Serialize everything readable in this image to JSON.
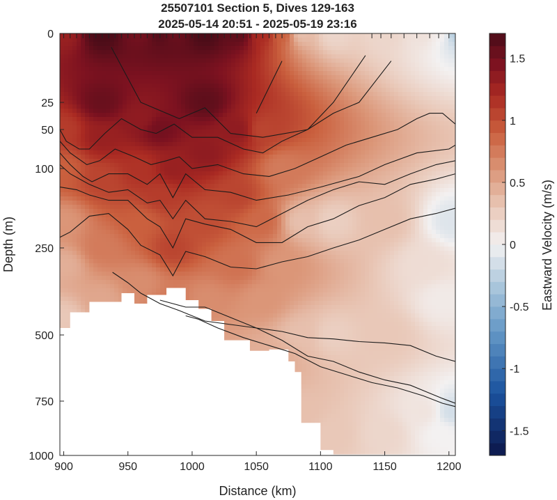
{
  "chart_data": {
    "type": "heatmap",
    "title": "25507101 Section 5, Dives 129-163",
    "subtitle": "2025-05-14 20:51 - 2025-05-19 23:16",
    "xlabel": "Distance (km)",
    "ylabel": "Depth (m)",
    "colorbar_label": "Eastward Velocity (m/s)",
    "x_ticks": [
      "900",
      "950",
      "1000",
      "1050",
      "1100",
      "1150",
      "1200"
    ],
    "x_tick_values": [
      900,
      950,
      1000,
      1050,
      1100,
      1150,
      1200
    ],
    "y_ticks": [
      "0",
      "25",
      "50",
      "100",
      "250",
      "500",
      "750",
      "1000"
    ],
    "y_tick_values": [
      0,
      25,
      50,
      100,
      250,
      500,
      750,
      1000
    ],
    "colorbar_ticks": [
      "1.5",
      "1",
      "0.5",
      "0",
      "-0.5",
      "-1",
      "-1.5"
    ],
    "colorbar_tick_values": [
      1.5,
      1,
      0.5,
      0,
      -0.5,
      -1,
      -1.5
    ],
    "xlim": [
      897,
      1205
    ],
    "ylim": [
      0,
      1000
    ],
    "clim": [
      -1.7,
      1.7
    ],
    "colors": {
      "positive": "#4a0c18",
      "neutral": "#f3f1f1",
      "negative": "#0c1a4a"
    },
    "dive_markers_x": [
      900,
      905,
      910,
      915,
      920,
      925,
      930,
      935,
      940,
      945,
      950,
      955,
      960,
      965,
      970,
      975,
      980,
      985,
      990,
      995,
      1000,
      1005,
      1010,
      1015,
      1020,
      1025,
      1030,
      1035,
      1040,
      1045,
      1050,
      1055,
      1060,
      1065,
      1070,
      1140,
      1147,
      1155,
      1165,
      1175,
      1185,
      1192,
      1200
    ],
    "velocity_field": [
      {
        "x": 900,
        "d": 0,
        "v": 1.3
      },
      {
        "x": 900,
        "d": 50,
        "v": 1.1
      },
      {
        "x": 900,
        "d": 100,
        "v": 0.9
      },
      {
        "x": 900,
        "d": 200,
        "v": 0.6
      },
      {
        "x": 900,
        "d": 300,
        "v": 0.45
      },
      {
        "x": 900,
        "d": 450,
        "v": 0.3
      },
      {
        "x": 930,
        "d": 0,
        "v": 1.7
      },
      {
        "x": 930,
        "d": 25,
        "v": 1.55
      },
      {
        "x": 930,
        "d": 60,
        "v": 1.3
      },
      {
        "x": 930,
        "d": 120,
        "v": 1.05
      },
      {
        "x": 930,
        "d": 250,
        "v": 0.75
      },
      {
        "x": 930,
        "d": 400,
        "v": 0.5
      },
      {
        "x": 960,
        "d": 0,
        "v": 1.5
      },
      {
        "x": 960,
        "d": 40,
        "v": 1.35
      },
      {
        "x": 960,
        "d": 100,
        "v": 1.15
      },
      {
        "x": 960,
        "d": 200,
        "v": 0.9
      },
      {
        "x": 960,
        "d": 350,
        "v": 0.65
      },
      {
        "x": 975,
        "d": 0,
        "v": 1.65
      },
      {
        "x": 975,
        "d": 50,
        "v": 1.5
      },
      {
        "x": 975,
        "d": 150,
        "v": 1.1
      },
      {
        "x": 985,
        "d": 0,
        "v": 1.55
      },
      {
        "x": 985,
        "d": 100,
        "v": 1.3
      },
      {
        "x": 985,
        "d": 250,
        "v": 1.05
      },
      {
        "x": 985,
        "d": 400,
        "v": 0.75
      },
      {
        "x": 1010,
        "d": 0,
        "v": 1.7
      },
      {
        "x": 1010,
        "d": 25,
        "v": 1.6
      },
      {
        "x": 1010,
        "d": 80,
        "v": 1.35
      },
      {
        "x": 1010,
        "d": 200,
        "v": 1.0
      },
      {
        "x": 1010,
        "d": 400,
        "v": 0.65
      },
      {
        "x": 1010,
        "d": 550,
        "v": 0.5
      },
      {
        "x": 1035,
        "d": 0,
        "v": 1.6
      },
      {
        "x": 1035,
        "d": 50,
        "v": 1.35
      },
      {
        "x": 1035,
        "d": 150,
        "v": 1.05
      },
      {
        "x": 1035,
        "d": 300,
        "v": 0.8
      },
      {
        "x": 1055,
        "d": 0,
        "v": 1.2
      },
      {
        "x": 1055,
        "d": 50,
        "v": 1.05
      },
      {
        "x": 1055,
        "d": 200,
        "v": 0.85
      },
      {
        "x": 1055,
        "d": 400,
        "v": 0.6
      },
      {
        "x": 1055,
        "d": 600,
        "v": 0.45
      },
      {
        "x": 1070,
        "d": 0,
        "v": 0.9
      },
      {
        "x": 1070,
        "d": 100,
        "v": 0.75
      },
      {
        "x": 1070,
        "d": 300,
        "v": 0.6
      },
      {
        "x": 1070,
        "d": 600,
        "v": 0.45
      },
      {
        "x": 1085,
        "d": 0,
        "v": 0.35
      },
      {
        "x": 1085,
        "d": 200,
        "v": 0.35
      },
      {
        "x": 1085,
        "d": 500,
        "v": 0.35
      },
      {
        "x": 1085,
        "d": 800,
        "v": 0.35
      },
      {
        "x": 1110,
        "d": 0,
        "v": 0.2
      },
      {
        "x": 1110,
        "d": 200,
        "v": 0.25
      },
      {
        "x": 1110,
        "d": 500,
        "v": 0.25
      },
      {
        "x": 1110,
        "d": 900,
        "v": 0.3
      },
      {
        "x": 1150,
        "d": 0,
        "v": 0.2
      },
      {
        "x": 1150,
        "d": 200,
        "v": 0.35
      },
      {
        "x": 1150,
        "d": 500,
        "v": 0.3
      },
      {
        "x": 1150,
        "d": 900,
        "v": 0.2
      },
      {
        "x": 1180,
        "d": 0,
        "v": 0.12
      },
      {
        "x": 1180,
        "d": 300,
        "v": 0.15
      },
      {
        "x": 1180,
        "d": 800,
        "v": 0.1
      },
      {
        "x": 1195,
        "d": 0,
        "v": 0.05
      },
      {
        "x": 1195,
        "d": 400,
        "v": 0.05
      },
      {
        "x": 1195,
        "d": 900,
        "v": 0.0
      },
      {
        "x": 1203,
        "d": 0,
        "v": -0.3
      },
      {
        "x": 1203,
        "d": 200,
        "v": -0.1
      },
      {
        "x": 1203,
        "d": 800,
        "v": -0.15
      }
    ],
    "bottom_extent": [
      [
        897,
        480
      ],
      [
        905,
        480
      ],
      [
        905,
        435
      ],
      [
        920,
        435
      ],
      [
        920,
        405
      ],
      [
        945,
        405
      ],
      [
        945,
        380
      ],
      [
        955,
        380
      ],
      [
        955,
        410
      ],
      [
        965,
        410
      ],
      [
        965,
        385
      ],
      [
        980,
        385
      ],
      [
        980,
        365
      ],
      [
        995,
        365
      ],
      [
        995,
        400
      ],
      [
        1005,
        400
      ],
      [
        1005,
        425
      ],
      [
        1015,
        425
      ],
      [
        1015,
        460
      ],
      [
        1025,
        460
      ],
      [
        1025,
        520
      ],
      [
        1045,
        520
      ],
      [
        1045,
        560
      ],
      [
        1060,
        560
      ],
      [
        1060,
        555
      ],
      [
        1075,
        555
      ],
      [
        1075,
        600
      ],
      [
        1080,
        600
      ],
      [
        1080,
        640
      ],
      [
        1085,
        640
      ],
      [
        1085,
        850
      ],
      [
        1100,
        850
      ],
      [
        1100,
        975
      ],
      [
        1110,
        975
      ],
      [
        1110,
        995
      ],
      [
        1205,
        995
      ]
    ],
    "contours": [
      {
        "x": [
          1050,
          1070
        ],
        "d": [
          35,
          10
        ]
      },
      {
        "x": [
          937,
          960,
          990,
          1010,
          1030,
          1055,
          1090,
          1110,
          1135
        ],
        "d": [
          5,
          25,
          40,
          30,
          55,
          60,
          50,
          25,
          8
        ]
      },
      {
        "x": [
          897,
          902,
          912,
          920,
          932,
          945,
          960,
          972,
          986,
          1000,
          1020,
          1040,
          1055,
          1070,
          1090,
          1110,
          1130,
          1155
        ],
        "d": [
          50,
          65,
          75,
          75,
          55,
          40,
          50,
          55,
          45,
          60,
          60,
          75,
          80,
          65,
          50,
          35,
          25,
          10
        ]
      },
      {
        "x": [
          897,
          905,
          918,
          928,
          940,
          955,
          968,
          980,
          990,
          1000,
          1020,
          1040,
          1060,
          1080,
          1100,
          1120,
          1140,
          1160,
          1175,
          1185,
          1195,
          1205
        ],
        "d": [
          65,
          80,
          95,
          90,
          75,
          85,
          95,
          90,
          85,
          100,
          95,
          110,
          115,
          100,
          85,
          70,
          60,
          50,
          40,
          35,
          35,
          45
        ]
      },
      {
        "x": [
          897,
          905,
          915,
          922,
          935,
          950,
          965,
          975,
          985,
          995,
          1010,
          1030,
          1050,
          1075,
          1100,
          1130,
          1150,
          1175,
          1200,
          1205
        ],
        "d": [
          80,
          95,
          115,
          125,
          110,
          110,
          130,
          110,
          155,
          110,
          140,
          145,
          160,
          150,
          135,
          115,
          95,
          80,
          75,
          70
        ]
      },
      {
        "x": [
          897,
          905,
          920,
          935,
          950,
          965,
          975,
          985,
          995,
          1010,
          1030,
          1050,
          1070,
          1090,
          1110,
          1130,
          1150,
          1170,
          1190,
          1205
        ],
        "d": [
          95,
          110,
          130,
          145,
          140,
          165,
          160,
          195,
          160,
          195,
          200,
          210,
          185,
          160,
          140,
          125,
          130,
          110,
          95,
          90
        ]
      },
      {
        "x": [
          897,
          910,
          920,
          935,
          950,
          965,
          975,
          985,
          995,
          1010,
          1030,
          1050,
          1070,
          1090,
          1110,
          1130,
          1150,
          1170,
          1190,
          1205
        ],
        "d": [
          135,
          140,
          150,
          160,
          160,
          195,
          210,
          250,
          195,
          205,
          215,
          240,
          240,
          210,
          195,
          170,
          155,
          130,
          120,
          110
        ]
      },
      {
        "x": [
          897,
          905,
          920,
          935,
          950,
          960,
          975,
          985,
          995,
          1010,
          1030,
          1050,
          1070,
          1090,
          1110,
          1130,
          1150,
          1170,
          1190,
          1205
        ],
        "d": [
          230,
          220,
          190,
          185,
          215,
          245,
          270,
          330,
          260,
          275,
          305,
          310,
          290,
          275,
          250,
          235,
          215,
          195,
          185,
          175
        ]
      },
      {
        "x": [
          938,
          950,
          960,
          975,
          990,
          1010,
          1030,
          1050,
          1070,
          1090,
          1110,
          1130,
          1150,
          1170,
          1190,
          1205
        ],
        "d": [
          320,
          350,
          380,
          410,
          430,
          460,
          470,
          480,
          490,
          510,
          515,
          525,
          530,
          540,
          580,
          600
        ]
      },
      {
        "x": [
          975,
          985,
          995,
          1010,
          1030,
          1050,
          1070,
          1090,
          1110,
          1130,
          1150,
          1170,
          1185,
          1195,
          1205
        ],
        "d": [
          400,
          410,
          420,
          420,
          450,
          480,
          520,
          580,
          600,
          640,
          670,
          690,
          720,
          740,
          760
        ]
      },
      {
        "x": [
          995,
          1005,
          1020,
          1040,
          1060,
          1080,
          1100,
          1120,
          1140,
          1160,
          1180,
          1195,
          1205
        ],
        "d": [
          445,
          455,
          480,
          510,
          540,
          570,
          620,
          650,
          680,
          700,
          730,
          760,
          775
        ]
      }
    ]
  }
}
